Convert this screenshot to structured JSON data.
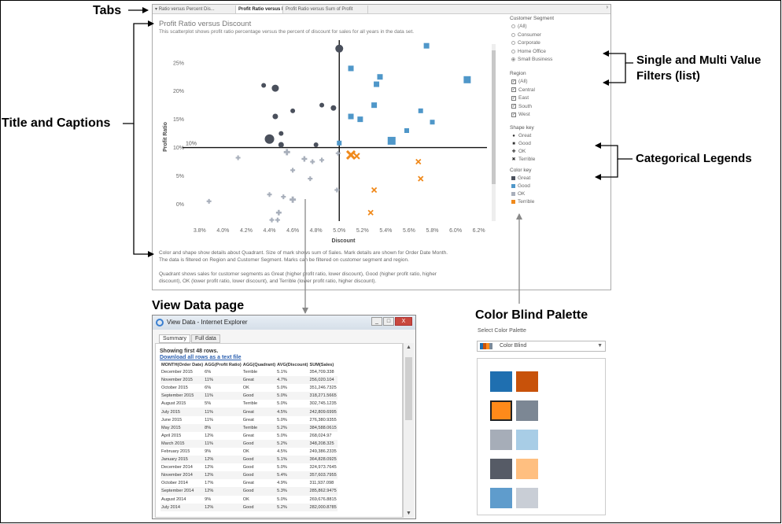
{
  "annotations": {
    "tabs": "Tabs",
    "title_captions": "Title and Captions",
    "filters_line1": "Single and Multi Value",
    "filters_line2": "Filters (list)",
    "legends": "Categorical Legends",
    "view_data": "View Data page",
    "palette": "Color Blind Palette"
  },
  "dashboard": {
    "tabs": [
      "Ratio versus Percent Dis...",
      "Profit Ratio versus Discount",
      "Profit Ratio versus Sum of Profit"
    ],
    "active_tab_index": 1,
    "title": "Profit Ratio versus Discount",
    "subtitle": "This scatterplot shows profit ratio percentage versus the percent of discount for sales for all years in the data set.",
    "caption1_line1": "Color and shape show details about Quadrant. Size of mark shows sum of Sales. Mark details are shown for Order Date Month.",
    "caption1_line2": "The data is filtered on Region and Customer Segment. Marks can be filtered on customer segment and region.",
    "caption2_line1": "Quadrant shows sales for customer segments as Great (higher profit ratio, lower discount), Good (higher profit ratio, higher",
    "caption2_line2": "discount), OK (lower profit ratio, lower discount), and Terrible (lower profit ratio, higher discount).",
    "filters": {
      "segment_title": "Customer Segment",
      "segment_options": [
        "(All)",
        "Consumer",
        "Corporate",
        "Home Office",
        "Small Business"
      ],
      "segment_selected": "Small Business",
      "region_title": "Region",
      "region_options": [
        "(All)",
        "Central",
        "East",
        "South",
        "West"
      ]
    },
    "legends": {
      "shape_title": "Shape key",
      "shape_items": [
        {
          "label": "Great",
          "icon": "circle-icon"
        },
        {
          "label": "Good",
          "icon": "square-icon"
        },
        {
          "label": "OK",
          "icon": "plus-icon"
        },
        {
          "label": "Terrible",
          "icon": "x-icon"
        }
      ],
      "color_title": "Color key",
      "color_items": [
        {
          "label": "Great",
          "color": "#4a505c"
        },
        {
          "label": "Good",
          "color": "#4f97c9"
        },
        {
          "label": "OK",
          "color": "#a8afbb"
        },
        {
          "label": "Terrible",
          "color": "#f08a1c"
        }
      ]
    }
  },
  "chart_data": {
    "type": "scatter",
    "xlabel": "Discount",
    "ylabel": "Profit Ratio",
    "x_ticks": [
      "3.8%",
      "4.0%",
      "4.2%",
      "4.4%",
      "4.6%",
      "4.8%",
      "5.0%",
      "5.2%",
      "5.4%",
      "5.6%",
      "5.8%",
      "6.0%",
      "6.2%"
    ],
    "y_ticks": [
      "0%",
      "5%",
      "10%",
      "15%",
      "20%",
      "25%"
    ],
    "xlim": [
      3.72,
      6.27
    ],
    "ylim": [
      -3,
      29
    ],
    "reference_lines": {
      "x": 5.0,
      "y": 10,
      "y_label": "10%"
    },
    "series": [
      {
        "name": "Great",
        "shape": "circle",
        "color": "#4a505c",
        "points": [
          [
            5.0,
            27.5,
            5
          ],
          [
            4.35,
            21,
            3
          ],
          [
            4.45,
            20.5,
            4.5
          ],
          [
            4.85,
            17.5,
            3
          ],
          [
            4.95,
            17,
            3.5
          ],
          [
            4.6,
            16.5,
            3
          ],
          [
            4.45,
            15.5,
            3.5
          ],
          [
            4.5,
            12.5,
            3
          ],
          [
            4.4,
            11.5,
            6
          ],
          [
            4.5,
            10.5,
            3.5
          ],
          [
            4.8,
            10.5,
            3
          ]
        ]
      },
      {
        "name": "Good",
        "shape": "square",
        "color": "#4f97c9",
        "points": [
          [
            5.75,
            28,
            3.5
          ],
          [
            5.1,
            24,
            3.5
          ],
          [
            5.35,
            22.5,
            3.5
          ],
          [
            5.32,
            21.2,
            3.5
          ],
          [
            6.1,
            22,
            4.5
          ],
          [
            5.3,
            17.5,
            3.5
          ],
          [
            5.7,
            16.5,
            3
          ],
          [
            5.8,
            14.5,
            3
          ],
          [
            5.1,
            15.5,
            3.5
          ],
          [
            5.18,
            15,
            3.5
          ],
          [
            5.58,
            13,
            3
          ],
          [
            5.45,
            11.2,
            5
          ],
          [
            5.0,
            10.8,
            3
          ]
        ]
      },
      {
        "name": "OK",
        "shape": "plus",
        "color": "#a8afbb",
        "points": [
          [
            4.13,
            8.2,
            3
          ],
          [
            4.55,
            9.2,
            4
          ],
          [
            4.7,
            8,
            3.5
          ],
          [
            4.77,
            7.5,
            3
          ],
          [
            4.85,
            7.8,
            3
          ],
          [
            4.99,
            9,
            3
          ],
          [
            4.6,
            6,
            3
          ],
          [
            4.75,
            4.5,
            3
          ],
          [
            4.98,
            2.5,
            3
          ],
          [
            4.4,
            1.7,
            3
          ],
          [
            4.52,
            1.3,
            3
          ],
          [
            4.6,
            0.8,
            4
          ],
          [
            3.88,
            0.5,
            3
          ],
          [
            4.48,
            -1.5,
            3.5
          ],
          [
            4.42,
            -2.8,
            3
          ],
          [
            4.47,
            -2.8,
            3
          ]
        ]
      },
      {
        "name": "Terrible",
        "shape": "x",
        "color": "#f08a1c",
        "points": [
          [
            5.1,
            8.7,
            5
          ],
          [
            5.15,
            8.5,
            3.5
          ],
          [
            5.68,
            7.5,
            3
          ],
          [
            5.7,
            4.5,
            3
          ],
          [
            5.3,
            2.5,
            3
          ],
          [
            5.27,
            -1.5,
            3
          ]
        ]
      }
    ]
  },
  "view_data": {
    "window_title": "View Data - Internet Explorer",
    "window_buttons": [
      "_",
      "□",
      "X"
    ],
    "tabs": [
      "Summary",
      "Full data"
    ],
    "header": "Showing first 48 rows.",
    "download_link": "Download all rows as a text file",
    "columns": [
      "MONTH(Order Date)",
      "AGG(Profit Ratio)",
      "AGG(Quadrant)",
      "AVG(Discount)",
      "SUM(Sales)"
    ],
    "rows": [
      [
        "December 2015",
        "6%",
        "Terrible",
        "5.1%",
        "354,709.338"
      ],
      [
        "November 2015",
        "11%",
        "Great",
        "4.7%",
        "256,020.104"
      ],
      [
        "October 2015",
        "6%",
        "OK",
        "5.0%",
        "351,246.7325"
      ],
      [
        "September 2015",
        "11%",
        "Good",
        "5.0%",
        "318,271.5665"
      ],
      [
        "August 2015",
        "5%",
        "Terrible",
        "5.0%",
        "302,745.1235"
      ],
      [
        "July 2015",
        "11%",
        "Great",
        "4.5%",
        "242,809.6995"
      ],
      [
        "June 2015",
        "11%",
        "Great",
        "5.0%",
        "276,380.9355"
      ],
      [
        "May 2015",
        "8%",
        "Terrible",
        "5.2%",
        "384,588.0615"
      ],
      [
        "April 2015",
        "12%",
        "Great",
        "5.0%",
        "268,024.97"
      ],
      [
        "March 2015",
        "11%",
        "Good",
        "5.2%",
        "348,208.325"
      ],
      [
        "February 2015",
        "9%",
        "OK",
        "4.5%",
        "249,386.2335"
      ],
      [
        "January 2015",
        "12%",
        "Good",
        "5.1%",
        "364,828.0925"
      ],
      [
        "December 2014",
        "12%",
        "Good",
        "5.0%",
        "324,973.7645"
      ],
      [
        "November 2014",
        "12%",
        "Good",
        "5.4%",
        "357,603.7955"
      ],
      [
        "October 2014",
        "17%",
        "Great",
        "4.9%",
        "311,937.098"
      ],
      [
        "September 2014",
        "12%",
        "Good",
        "5.3%",
        "285,862.9475"
      ],
      [
        "August 2014",
        "9%",
        "OK",
        "5.0%",
        "269,676.8815"
      ],
      [
        "July 2014",
        "12%",
        "Good",
        "5.2%",
        "282,000.8785"
      ]
    ]
  },
  "palette": {
    "label": "Select Color Palette",
    "selected": "Color Blind",
    "swatches": [
      "#1f6fb0",
      "#c8520a",
      "#ff8a1a",
      "#7c8794",
      "#a6adb8",
      "#a8cde6",
      "#565b66",
      "#ffbf80",
      "#5f9ccc",
      "#c9ced6"
    ],
    "highlighted_index": 2
  }
}
